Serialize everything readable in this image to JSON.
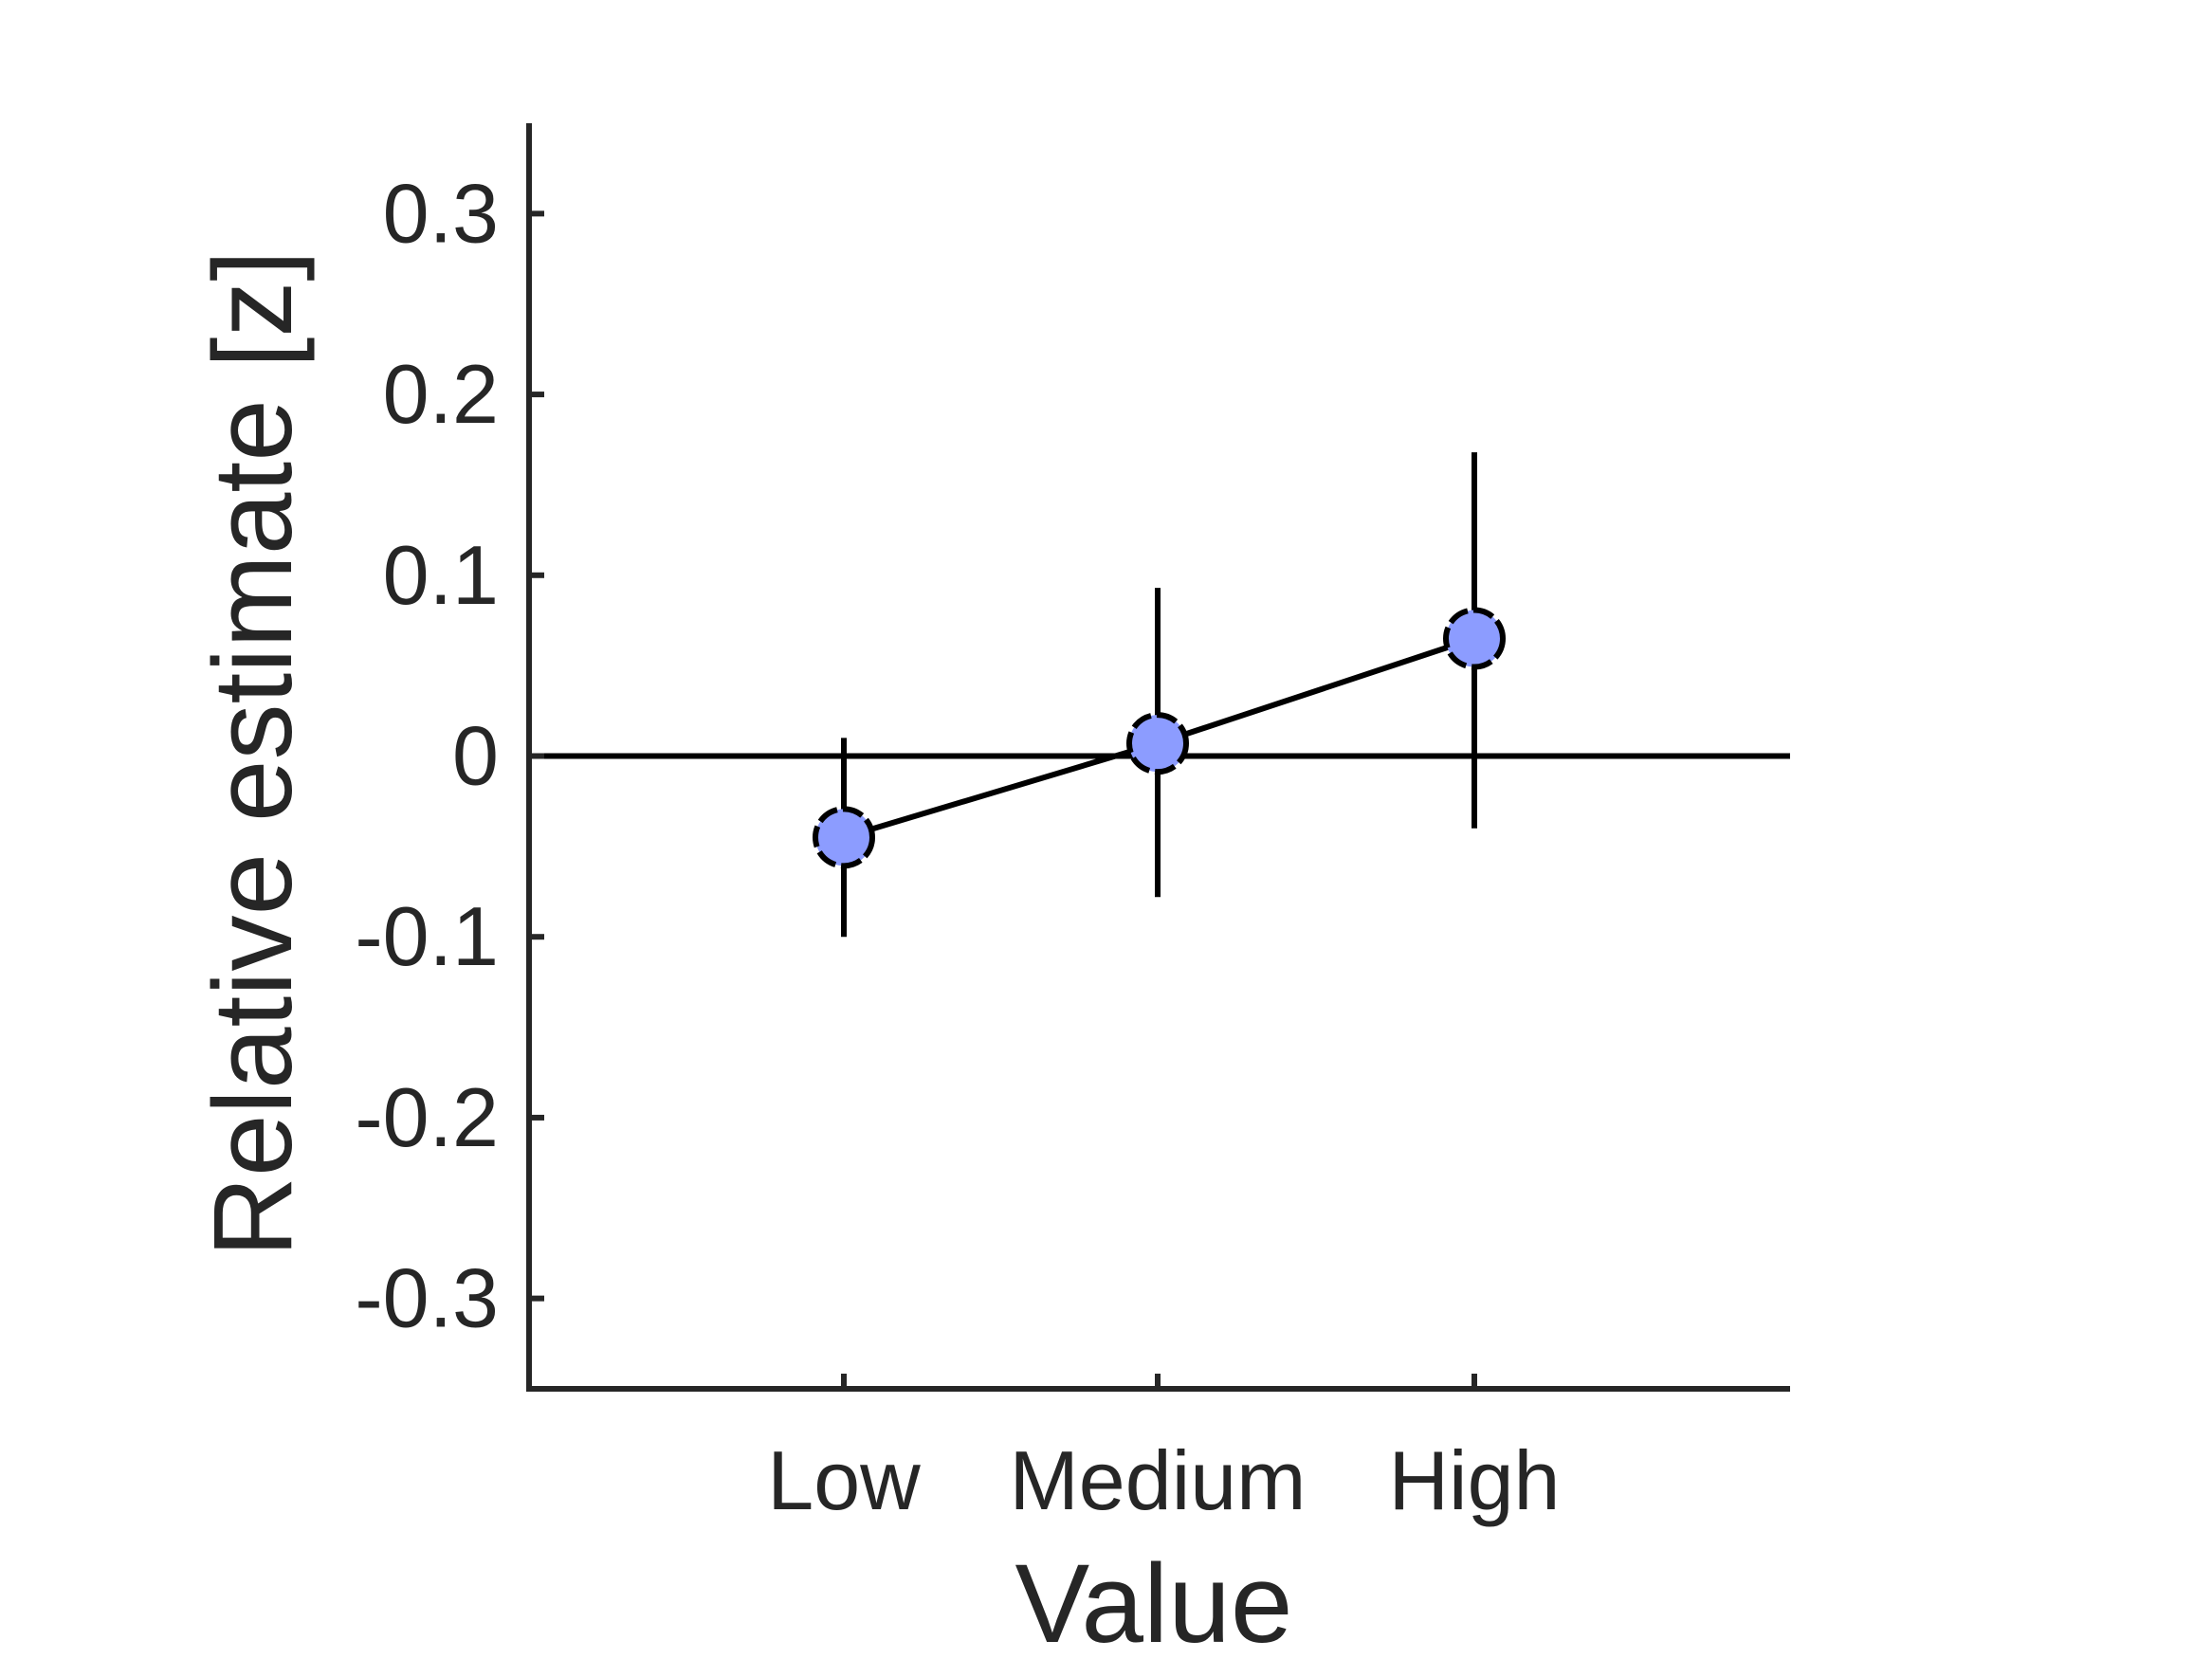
{
  "chart_data": {
    "type": "line",
    "title": "",
    "xlabel": "Value",
    "ylabel": "Relative estimate [z]",
    "categories": [
      "Low",
      "Medium",
      "High"
    ],
    "series": [
      {
        "values": [
          -0.045,
          0.007,
          0.065
        ],
        "error_low": [
          -0.1,
          -0.078,
          -0.04
        ],
        "error_high": [
          0.01,
          0.093,
          0.168
        ]
      }
    ],
    "ylim": [
      -0.35,
      0.35
    ],
    "yticks": [
      -0.3,
      -0.2,
      -0.1,
      0,
      0.1,
      0.2,
      0.3
    ],
    "ytick_labels": [
      "-0.3",
      "-0.2",
      "-0.1",
      "0",
      "0.1",
      "0.2",
      "0.3"
    ],
    "reference_line_y": 0,
    "grid": false,
    "legend": "none",
    "colors": {
      "marker_fill": "#8c9cff",
      "marker_edge": "#000000",
      "axis": "#262626",
      "line": "#000000"
    }
  }
}
